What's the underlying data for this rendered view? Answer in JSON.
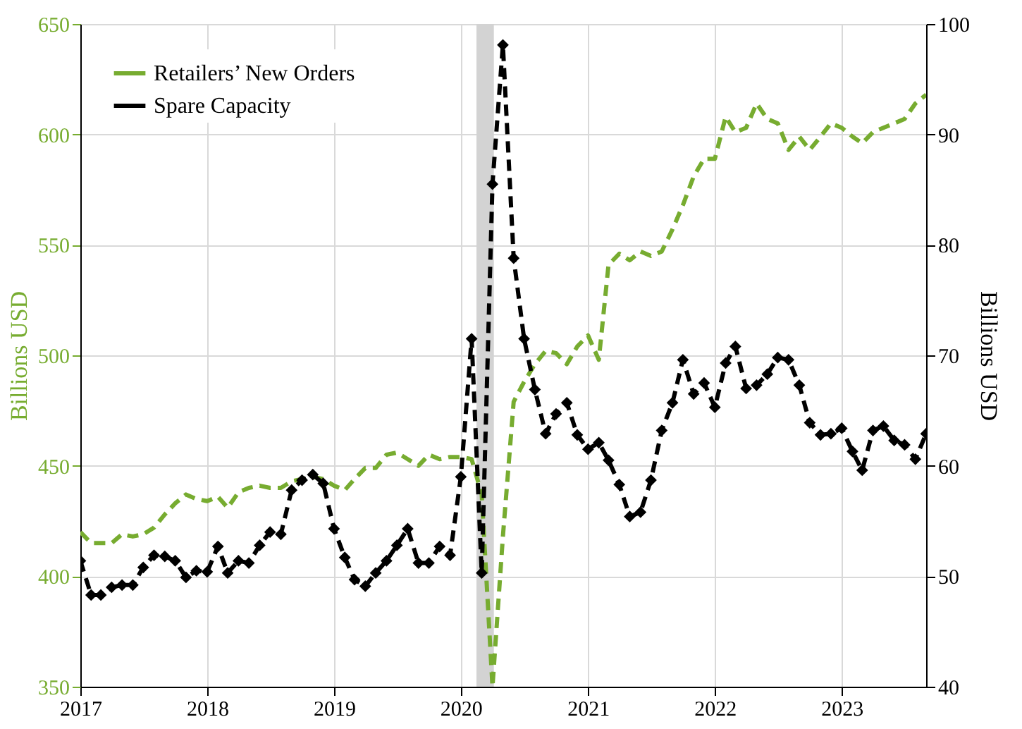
{
  "chart_data": {
    "type": "line",
    "x": [
      "2017-01",
      "2017-02",
      "2017-03",
      "2017-04",
      "2017-05",
      "2017-06",
      "2017-07",
      "2017-08",
      "2017-09",
      "2017-10",
      "2017-11",
      "2017-12",
      "2018-01",
      "2018-02",
      "2018-03",
      "2018-04",
      "2018-05",
      "2018-06",
      "2018-07",
      "2018-08",
      "2018-09",
      "2018-10",
      "2018-11",
      "2018-12",
      "2019-01",
      "2019-02",
      "2019-03",
      "2019-04",
      "2019-05",
      "2019-06",
      "2019-07",
      "2019-08",
      "2019-09",
      "2019-10",
      "2019-11",
      "2019-12",
      "2020-01",
      "2020-02",
      "2020-03",
      "2020-04",
      "2020-05",
      "2020-06",
      "2020-07",
      "2020-08",
      "2020-09",
      "2020-10",
      "2020-11",
      "2020-12",
      "2021-01",
      "2021-02",
      "2021-03",
      "2021-04",
      "2021-05",
      "2021-06",
      "2021-07",
      "2021-08",
      "2021-09",
      "2021-10",
      "2021-11",
      "2021-12",
      "2022-01",
      "2022-02",
      "2022-03",
      "2022-04",
      "2022-05",
      "2022-06",
      "2022-07",
      "2022-08",
      "2022-09",
      "2022-10",
      "2022-11",
      "2022-12",
      "2023-01",
      "2023-02",
      "2023-03",
      "2023-04",
      "2023-05",
      "2023-06",
      "2023-07",
      "2023-08",
      "2023-09"
    ],
    "series": [
      {
        "name": "Retailers’ New Orders",
        "color": "#77ac30",
        "line_style": "dashed",
        "marker": "none",
        "values": [
          420,
          415,
          415,
          415,
          419,
          418,
          419,
          422,
          428,
          433,
          437,
          435,
          434,
          436,
          431,
          438,
          440,
          441,
          440,
          440,
          443,
          444,
          445,
          444,
          441,
          439,
          444,
          449,
          449,
          455,
          456,
          453,
          450,
          455,
          453,
          454,
          454,
          453,
          437,
          350,
          418,
          479,
          488,
          496,
          502,
          501,
          496,
          504,
          509,
          498,
          541,
          546,
          543,
          547,
          545,
          547,
          557,
          568,
          581,
          589,
          589,
          608,
          601,
          603,
          614,
          607,
          605,
          593,
          599,
          593,
          599,
          605,
          603,
          599,
          596,
          601,
          603,
          605,
          607,
          614,
          618
        ]
      },
      {
        "name": "Spare Capacity",
        "color": "#000000",
        "axis": "y2",
        "line_style": "dashed",
        "marker": "diamond",
        "values": [
          51.4,
          48.3,
          48.3,
          49.0,
          49.2,
          49.2,
          50.8,
          51.9,
          51.8,
          51.4,
          49.9,
          50.5,
          50.4,
          52.7,
          50.3,
          51.4,
          51.2,
          52.8,
          54.0,
          53.8,
          57.8,
          58.7,
          59.2,
          58.4,
          54.3,
          51.7,
          49.7,
          49.1,
          50.3,
          51.4,
          52.8,
          54.3,
          51.2,
          51.2,
          52.7,
          51.9,
          59.0,
          71.5,
          50.3,
          85.5,
          98.1,
          78.8,
          71.5,
          66.9,
          62.9,
          64.7,
          65.7,
          62.8,
          61.5,
          62.1,
          60.5,
          58.3,
          55.4,
          55.8,
          58.7,
          63.2,
          65.7,
          69.6,
          66.5,
          67.5,
          65.3,
          69.3,
          70.8,
          67.0,
          67.3,
          68.3,
          69.8,
          69.6,
          67.3,
          63.9,
          62.8,
          62.9,
          63.4,
          61.3,
          59.6,
          63.2,
          63.6,
          62.3,
          61.9,
          60.6,
          62.9
        ]
      }
    ],
    "ylabel": "Billions USD",
    "y2label": "Billions USD",
    "xlim": [
      "2017-01",
      "2023-09"
    ],
    "xticks": [
      "2017",
      "2018",
      "2019",
      "2020",
      "2021",
      "2022",
      "2023"
    ],
    "ylim": [
      350,
      650
    ],
    "yticks": [
      350,
      400,
      450,
      500,
      550,
      600,
      650
    ],
    "y2lim": [
      40,
      100
    ],
    "y2ticks": [
      40,
      50,
      60,
      70,
      80,
      90,
      100
    ],
    "bands": [
      {
        "axis": "x",
        "from": "2020-02-15",
        "to": "2020-04-05",
        "color": "#d3d3d3"
      }
    ],
    "grid": true,
    "legend": "top left"
  }
}
